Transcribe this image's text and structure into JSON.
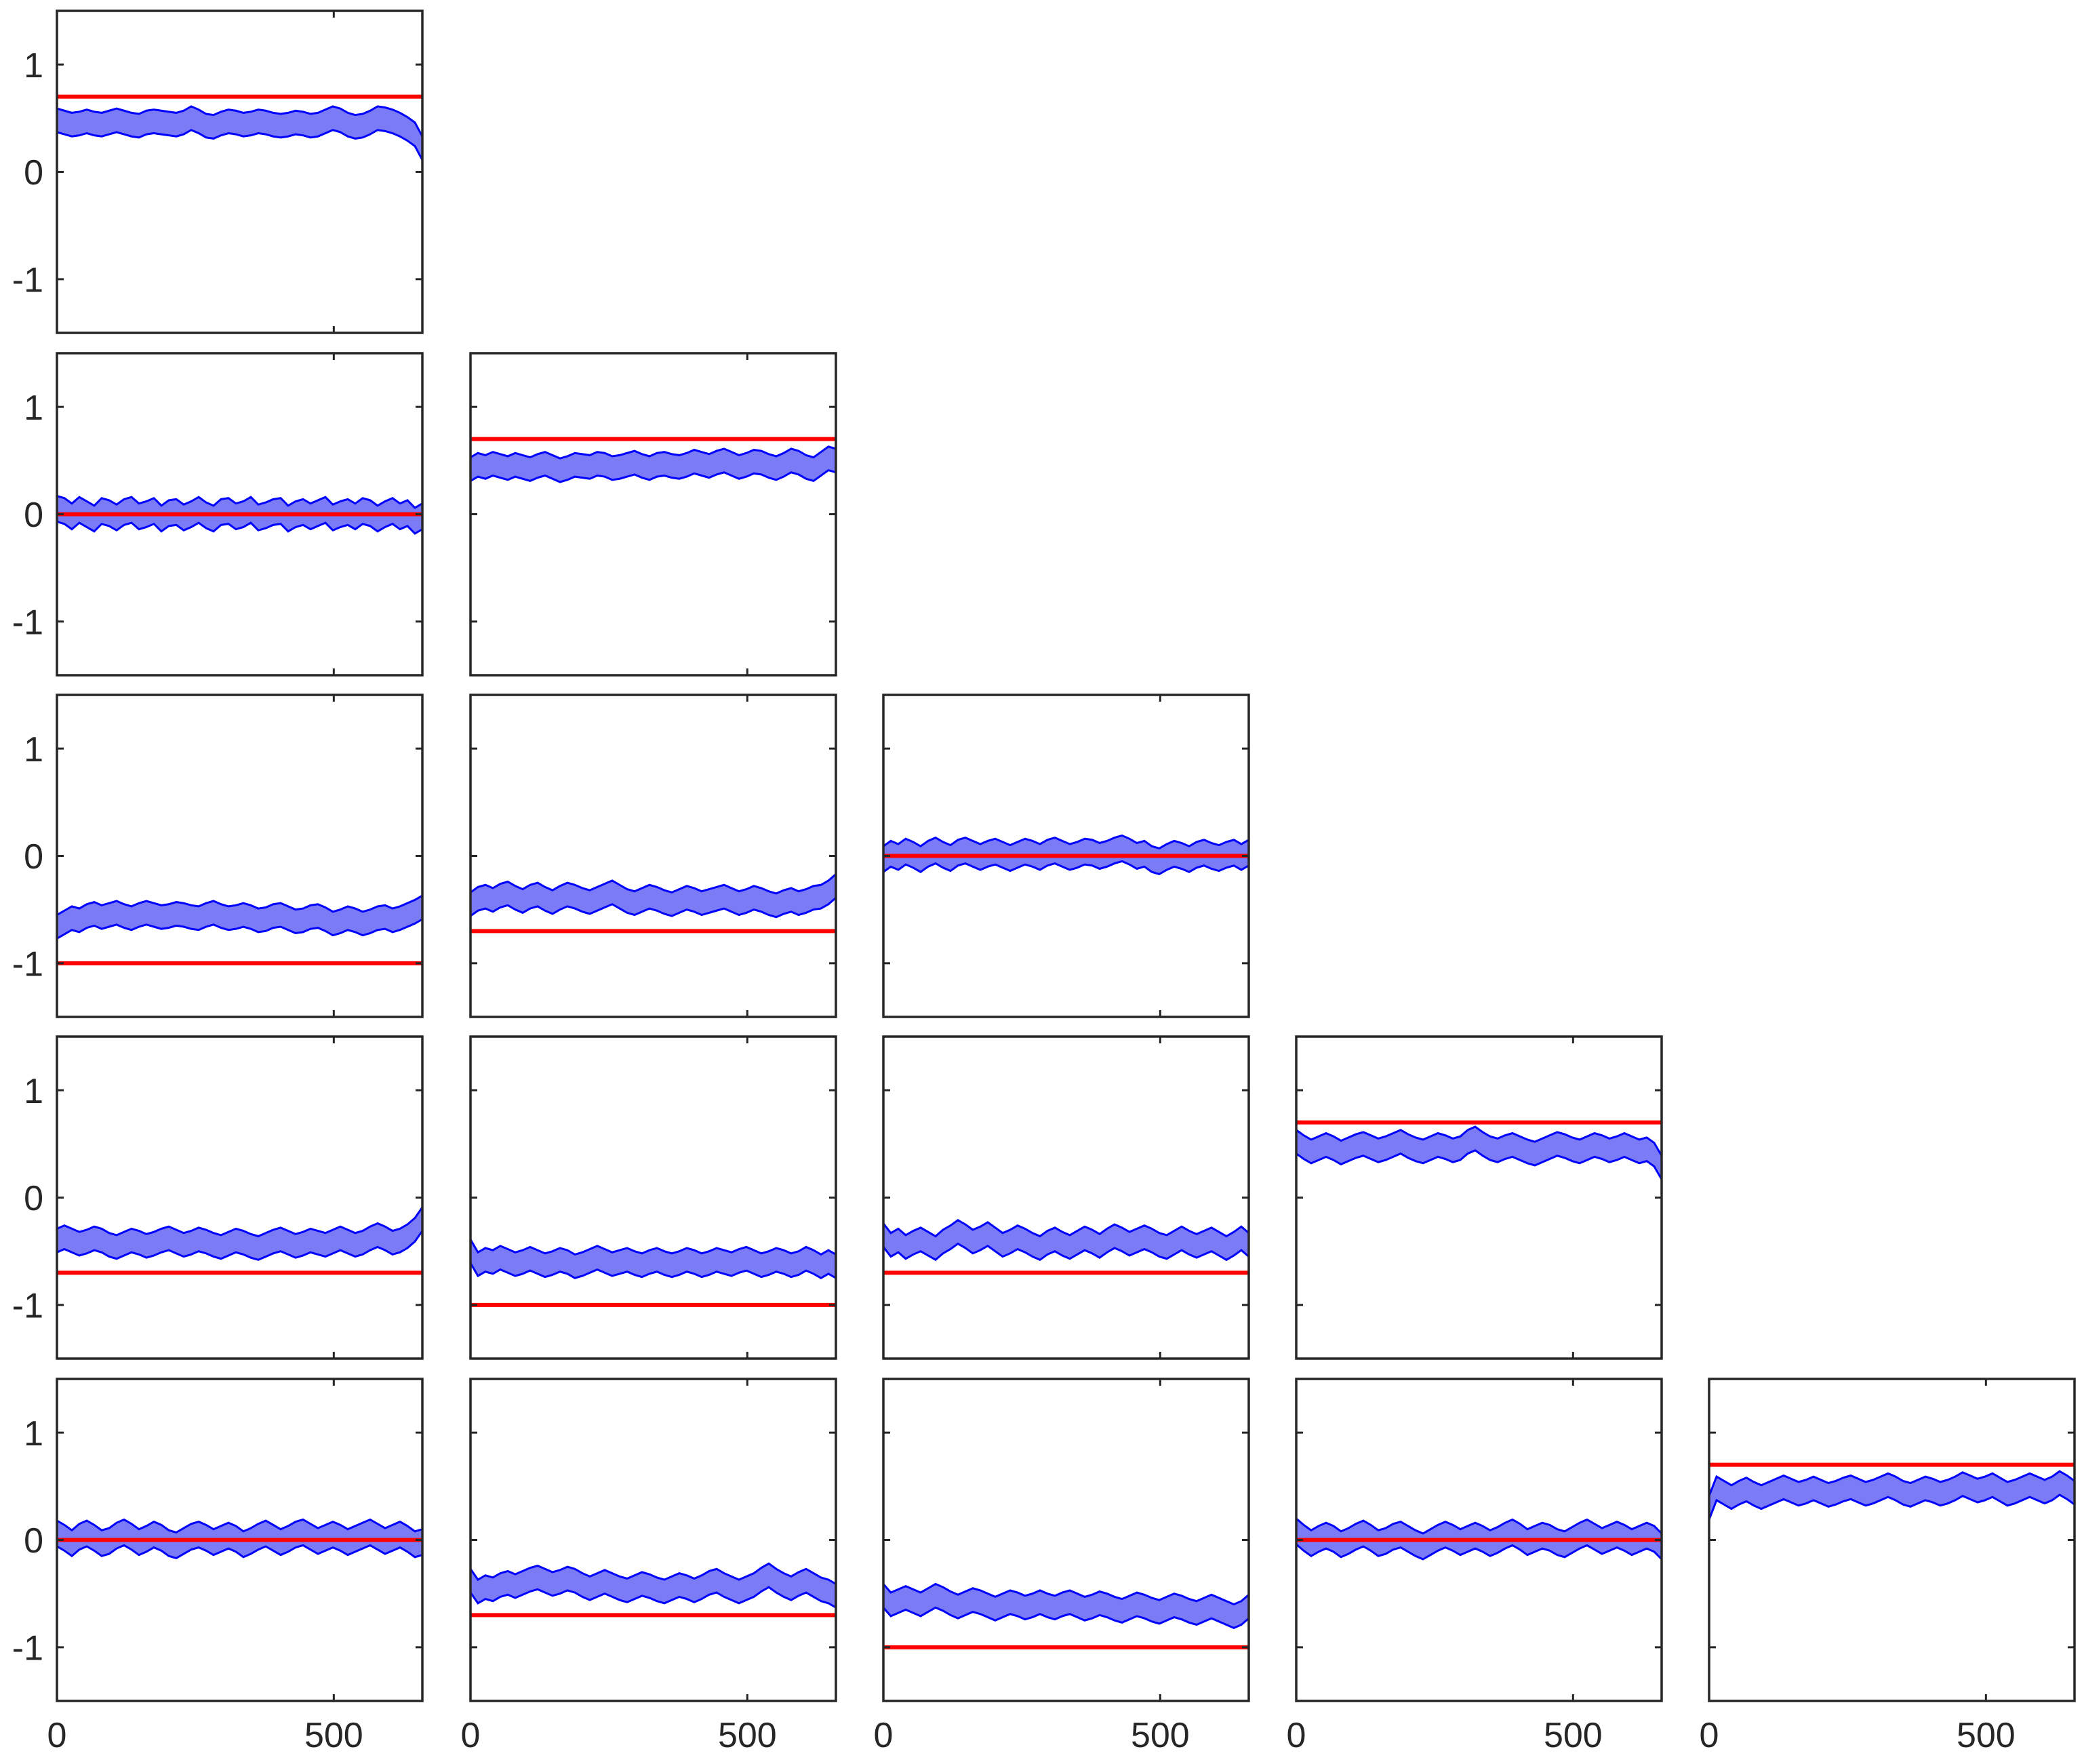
{
  "figure": {
    "grid_rows": 5,
    "grid_cols": 5,
    "layout": "lower-triangular",
    "colors": {
      "reference_line": "#ff0000",
      "band_fill": "#7b7bf5",
      "band_edge": "#0000ff",
      "axes": "#262626"
    }
  },
  "chart_data": [
    {
      "type": "line",
      "panel": "1-1",
      "row": 1,
      "col": 1,
      "reference": 0.7,
      "band_center": [
        0.48,
        0.46,
        0.44,
        0.45,
        0.47,
        0.45,
        0.44,
        0.46,
        0.48,
        0.46,
        0.44,
        0.43,
        0.46,
        0.47,
        0.46,
        0.45,
        0.44,
        0.46,
        0.5,
        0.47,
        0.43,
        0.42,
        0.45,
        0.47,
        0.46,
        0.44,
        0.45,
        0.47,
        0.46,
        0.44,
        0.43,
        0.44,
        0.46,
        0.45,
        0.43,
        0.44,
        0.47,
        0.5,
        0.48,
        0.44,
        0.42,
        0.43,
        0.46,
        0.5,
        0.49,
        0.47,
        0.44,
        0.4,
        0.35,
        0.22
      ],
      "band_halfwidth": 0.11,
      "xlim": [
        0,
        660
      ],
      "ylim": [
        -1.5,
        1.5
      ],
      "xticks": [
        0,
        500
      ],
      "yticks": [
        -1,
        0,
        1
      ],
      "show_xticklabels": false,
      "show_yticklabels": true
    },
    {
      "type": "line",
      "panel": "2-1",
      "row": 2,
      "col": 1,
      "reference": 0.0,
      "band_center": [
        0.05,
        0.03,
        -0.02,
        0.04,
        0.0,
        -0.04,
        0.03,
        0.01,
        -0.03,
        0.02,
        0.04,
        -0.02,
        0.0,
        0.03,
        -0.04,
        0.01,
        0.02,
        -0.03,
        0.0,
        0.04,
        -0.01,
        -0.04,
        0.02,
        0.03,
        -0.02,
        0.0,
        0.04,
        -0.03,
        -0.01,
        0.02,
        0.03,
        -0.04,
        0.0,
        0.02,
        -0.02,
        0.01,
        0.04,
        -0.03,
        0.0,
        0.02,
        -0.02,
        0.03,
        0.01,
        -0.04,
        0.0,
        0.03,
        -0.02,
        0.01,
        -0.06,
        -0.02
      ],
      "band_halfwidth": 0.12,
      "xlim": [
        0,
        660
      ],
      "ylim": [
        -1.5,
        1.5
      ],
      "xticks": [
        0,
        500
      ],
      "yticks": [
        -1,
        0,
        1
      ],
      "show_xticklabels": false,
      "show_yticklabels": true
    },
    {
      "type": "line",
      "panel": "2-2",
      "row": 2,
      "col": 2,
      "reference": 0.7,
      "band_center": [
        0.42,
        0.46,
        0.44,
        0.47,
        0.45,
        0.43,
        0.46,
        0.44,
        0.42,
        0.45,
        0.47,
        0.44,
        0.41,
        0.43,
        0.46,
        0.45,
        0.44,
        0.47,
        0.46,
        0.43,
        0.44,
        0.46,
        0.48,
        0.45,
        0.43,
        0.46,
        0.47,
        0.45,
        0.44,
        0.46,
        0.49,
        0.47,
        0.45,
        0.48,
        0.5,
        0.47,
        0.44,
        0.46,
        0.49,
        0.48,
        0.45,
        0.43,
        0.46,
        0.5,
        0.48,
        0.44,
        0.42,
        0.47,
        0.52,
        0.5
      ],
      "band_halfwidth": 0.11,
      "xlim": [
        0,
        660
      ],
      "ylim": [
        -1.5,
        1.5
      ],
      "xticks": [
        0,
        500
      ],
      "yticks": [
        -1,
        0,
        1
      ],
      "show_xticklabels": false,
      "show_yticklabels": false
    },
    {
      "type": "line",
      "panel": "3-1",
      "row": 3,
      "col": 1,
      "reference": -1.0,
      "band_center": [
        -0.66,
        -0.62,
        -0.58,
        -0.6,
        -0.56,
        -0.54,
        -0.57,
        -0.55,
        -0.53,
        -0.56,
        -0.58,
        -0.55,
        -0.53,
        -0.55,
        -0.57,
        -0.56,
        -0.54,
        -0.55,
        -0.57,
        -0.58,
        -0.55,
        -0.53,
        -0.56,
        -0.58,
        -0.57,
        -0.55,
        -0.57,
        -0.6,
        -0.59,
        -0.56,
        -0.55,
        -0.58,
        -0.61,
        -0.6,
        -0.57,
        -0.56,
        -0.59,
        -0.63,
        -0.61,
        -0.58,
        -0.6,
        -0.63,
        -0.61,
        -0.58,
        -0.57,
        -0.6,
        -0.58,
        -0.55,
        -0.52,
        -0.48
      ],
      "band_halfwidth": 0.11,
      "xlim": [
        0,
        660
      ],
      "ylim": [
        -1.5,
        1.5
      ],
      "xticks": [
        0,
        500
      ],
      "yticks": [
        -1,
        0,
        1
      ],
      "show_xticklabels": false,
      "show_yticklabels": true
    },
    {
      "type": "line",
      "panel": "3-2",
      "row": 3,
      "col": 2,
      "reference": -0.7,
      "band_center": [
        -0.45,
        -0.4,
        -0.38,
        -0.41,
        -0.37,
        -0.35,
        -0.39,
        -0.42,
        -0.38,
        -0.36,
        -0.4,
        -0.43,
        -0.39,
        -0.36,
        -0.38,
        -0.41,
        -0.43,
        -0.4,
        -0.37,
        -0.34,
        -0.38,
        -0.42,
        -0.44,
        -0.41,
        -0.38,
        -0.4,
        -0.43,
        -0.45,
        -0.42,
        -0.39,
        -0.41,
        -0.44,
        -0.42,
        -0.4,
        -0.38,
        -0.41,
        -0.44,
        -0.42,
        -0.39,
        -0.41,
        -0.44,
        -0.46,
        -0.43,
        -0.41,
        -0.44,
        -0.42,
        -0.39,
        -0.38,
        -0.34,
        -0.28
      ],
      "band_halfwidth": 0.11,
      "xlim": [
        0,
        660
      ],
      "ylim": [
        -1.5,
        1.5
      ],
      "xticks": [
        0,
        500
      ],
      "yticks": [
        -1,
        0,
        1
      ],
      "show_xticklabels": false,
      "show_yticklabels": false
    },
    {
      "type": "line",
      "panel": "3-3",
      "row": 3,
      "col": 3,
      "reference": 0.0,
      "band_center": [
        -0.03,
        0.02,
        -0.01,
        0.04,
        0.01,
        -0.03,
        0.02,
        0.05,
        0.01,
        -0.02,
        0.03,
        0.05,
        0.02,
        -0.01,
        0.02,
        0.04,
        0.01,
        -0.02,
        0.01,
        0.04,
        0.02,
        -0.01,
        0.03,
        0.05,
        0.02,
        -0.01,
        0.01,
        0.04,
        0.03,
        0.0,
        0.02,
        0.05,
        0.07,
        0.04,
        0.0,
        0.02,
        -0.03,
        -0.05,
        -0.01,
        0.02,
        0.0,
        -0.03,
        0.01,
        0.03,
        0.0,
        -0.02,
        0.01,
        0.03,
        -0.01,
        0.03
      ],
      "band_halfwidth": 0.12,
      "xlim": [
        0,
        660
      ],
      "ylim": [
        -1.5,
        1.5
      ],
      "xticks": [
        0,
        500
      ],
      "yticks": [
        -1,
        0,
        1
      ],
      "show_xticklabels": false,
      "show_yticklabels": false
    },
    {
      "type": "line",
      "panel": "4-1",
      "row": 4,
      "col": 1,
      "reference": -0.7,
      "band_center": [
        -0.4,
        -0.37,
        -0.4,
        -0.43,
        -0.41,
        -0.38,
        -0.4,
        -0.44,
        -0.46,
        -0.43,
        -0.4,
        -0.42,
        -0.45,
        -0.43,
        -0.4,
        -0.38,
        -0.41,
        -0.44,
        -0.42,
        -0.39,
        -0.41,
        -0.44,
        -0.46,
        -0.43,
        -0.4,
        -0.42,
        -0.45,
        -0.47,
        -0.44,
        -0.41,
        -0.39,
        -0.42,
        -0.45,
        -0.43,
        -0.4,
        -0.42,
        -0.44,
        -0.41,
        -0.38,
        -0.41,
        -0.44,
        -0.42,
        -0.38,
        -0.35,
        -0.38,
        -0.42,
        -0.4,
        -0.36,
        -0.3,
        -0.2
      ],
      "band_halfwidth": 0.11,
      "xlim": [
        0,
        660
      ],
      "ylim": [
        -1.5,
        1.5
      ],
      "xticks": [
        0,
        500
      ],
      "yticks": [
        -1,
        0,
        1
      ],
      "show_xticklabels": false,
      "show_yticklabels": true
    },
    {
      "type": "line",
      "panel": "4-2",
      "row": 4,
      "col": 2,
      "reference": -1.0,
      "band_center": [
        -0.5,
        -0.62,
        -0.58,
        -0.6,
        -0.56,
        -0.59,
        -0.62,
        -0.6,
        -0.57,
        -0.6,
        -0.63,
        -0.61,
        -0.58,
        -0.6,
        -0.64,
        -0.62,
        -0.59,
        -0.56,
        -0.59,
        -0.62,
        -0.6,
        -0.58,
        -0.61,
        -0.63,
        -0.6,
        -0.58,
        -0.61,
        -0.63,
        -0.61,
        -0.58,
        -0.6,
        -0.63,
        -0.61,
        -0.58,
        -0.6,
        -0.62,
        -0.59,
        -0.57,
        -0.6,
        -0.63,
        -0.61,
        -0.58,
        -0.6,
        -0.63,
        -0.61,
        -0.57,
        -0.6,
        -0.64,
        -0.6,
        -0.64
      ],
      "band_halfwidth": 0.11,
      "xlim": [
        0,
        660
      ],
      "ylim": [
        -1.5,
        1.5
      ],
      "xticks": [
        0,
        500
      ],
      "yticks": [
        -1,
        0,
        1
      ],
      "show_xticklabels": false,
      "show_yticklabels": false
    },
    {
      "type": "line",
      "panel": "4-3",
      "row": 4,
      "col": 3,
      "reference": -0.7,
      "band_center": [
        -0.35,
        -0.44,
        -0.4,
        -0.46,
        -0.42,
        -0.39,
        -0.43,
        -0.47,
        -0.41,
        -0.37,
        -0.32,
        -0.36,
        -0.41,
        -0.38,
        -0.34,
        -0.39,
        -0.44,
        -0.41,
        -0.37,
        -0.4,
        -0.44,
        -0.47,
        -0.42,
        -0.39,
        -0.43,
        -0.46,
        -0.42,
        -0.38,
        -0.41,
        -0.45,
        -0.4,
        -0.36,
        -0.39,
        -0.43,
        -0.4,
        -0.37,
        -0.4,
        -0.44,
        -0.46,
        -0.42,
        -0.38,
        -0.42,
        -0.45,
        -0.42,
        -0.39,
        -0.43,
        -0.47,
        -0.43,
        -0.38,
        -0.44
      ],
      "band_halfwidth": 0.11,
      "xlim": [
        0,
        660
      ],
      "ylim": [
        -1.5,
        1.5
      ],
      "xticks": [
        0,
        500
      ],
      "yticks": [
        -1,
        0,
        1
      ],
      "show_xticklabels": false,
      "show_yticklabels": false
    },
    {
      "type": "line",
      "panel": "4-4",
      "row": 4,
      "col": 4,
      "reference": 0.7,
      "band_center": [
        0.52,
        0.47,
        0.43,
        0.46,
        0.49,
        0.46,
        0.42,
        0.45,
        0.48,
        0.5,
        0.47,
        0.44,
        0.46,
        0.49,
        0.52,
        0.48,
        0.45,
        0.43,
        0.46,
        0.49,
        0.47,
        0.44,
        0.46,
        0.52,
        0.55,
        0.5,
        0.46,
        0.44,
        0.47,
        0.49,
        0.46,
        0.43,
        0.41,
        0.44,
        0.47,
        0.5,
        0.48,
        0.45,
        0.43,
        0.46,
        0.49,
        0.47,
        0.44,
        0.46,
        0.49,
        0.46,
        0.43,
        0.45,
        0.4,
        0.28
      ],
      "band_halfwidth": 0.11,
      "xlim": [
        0,
        660
      ],
      "ylim": [
        -1.5,
        1.5
      ],
      "xticks": [
        0,
        500
      ],
      "yticks": [
        -1,
        0,
        1
      ],
      "show_xticklabels": false,
      "show_yticklabels": false
    },
    {
      "type": "line",
      "panel": "5-1",
      "row": 5,
      "col": 1,
      "reference": 0.0,
      "band_center": [
        0.06,
        0.02,
        -0.03,
        0.03,
        0.06,
        0.02,
        -0.03,
        -0.01,
        0.04,
        0.07,
        0.03,
        -0.02,
        0.01,
        0.05,
        0.02,
        -0.03,
        -0.05,
        -0.01,
        0.03,
        0.05,
        0.02,
        -0.02,
        0.01,
        0.04,
        0.01,
        -0.04,
        -0.01,
        0.03,
        0.06,
        0.02,
        -0.02,
        0.01,
        0.05,
        0.07,
        0.03,
        -0.01,
        0.02,
        0.05,
        0.02,
        -0.02,
        0.01,
        0.04,
        0.07,
        0.03,
        -0.01,
        0.02,
        0.05,
        0.01,
        -0.04,
        -0.02
      ],
      "band_halfwidth": 0.12,
      "xlim": [
        0,
        660
      ],
      "ylim": [
        -1.5,
        1.5
      ],
      "xticks": [
        0,
        500
      ],
      "yticks": [
        -1,
        0,
        1
      ],
      "show_xticklabels": true,
      "show_yticklabels": true
    },
    {
      "type": "line",
      "panel": "5-2",
      "row": 5,
      "col": 2,
      "reference": -0.7,
      "band_center": [
        -0.38,
        -0.48,
        -0.44,
        -0.46,
        -0.42,
        -0.4,
        -0.43,
        -0.4,
        -0.37,
        -0.35,
        -0.38,
        -0.41,
        -0.39,
        -0.36,
        -0.38,
        -0.42,
        -0.45,
        -0.42,
        -0.39,
        -0.42,
        -0.45,
        -0.47,
        -0.44,
        -0.41,
        -0.43,
        -0.46,
        -0.48,
        -0.45,
        -0.42,
        -0.44,
        -0.47,
        -0.44,
        -0.4,
        -0.38,
        -0.42,
        -0.45,
        -0.48,
        -0.45,
        -0.42,
        -0.37,
        -0.33,
        -0.38,
        -0.42,
        -0.45,
        -0.41,
        -0.38,
        -0.42,
        -0.46,
        -0.48,
        -0.52
      ],
      "band_halfwidth": 0.11,
      "xlim": [
        0,
        660
      ],
      "ylim": [
        -1.5,
        1.5
      ],
      "xticks": [
        0,
        500
      ],
      "yticks": [
        -1,
        0,
        1
      ],
      "show_xticklabels": true,
      "show_yticklabels": false
    },
    {
      "type": "line",
      "panel": "5-3",
      "row": 5,
      "col": 3,
      "reference": -1.0,
      "band_center": [
        -0.52,
        -0.6,
        -0.57,
        -0.54,
        -0.57,
        -0.6,
        -0.56,
        -0.52,
        -0.55,
        -0.59,
        -0.62,
        -0.59,
        -0.56,
        -0.58,
        -0.61,
        -0.64,
        -0.61,
        -0.58,
        -0.6,
        -0.63,
        -0.61,
        -0.58,
        -0.61,
        -0.63,
        -0.6,
        -0.58,
        -0.61,
        -0.64,
        -0.62,
        -0.59,
        -0.61,
        -0.64,
        -0.66,
        -0.63,
        -0.6,
        -0.62,
        -0.65,
        -0.67,
        -0.64,
        -0.61,
        -0.63,
        -0.66,
        -0.68,
        -0.65,
        -0.62,
        -0.65,
        -0.68,
        -0.71,
        -0.68,
        -0.62
      ],
      "band_halfwidth": 0.11,
      "xlim": [
        0,
        660
      ],
      "ylim": [
        -1.5,
        1.5
      ],
      "xticks": [
        0,
        500
      ],
      "yticks": [
        -1,
        0,
        1
      ],
      "show_xticklabels": true,
      "show_yticklabels": false
    },
    {
      "type": "line",
      "panel": "5-4",
      "row": 5,
      "col": 4,
      "reference": 0.0,
      "band_center": [
        0.08,
        0.02,
        -0.03,
        0.01,
        0.04,
        0.01,
        -0.04,
        -0.01,
        0.03,
        0.06,
        0.02,
        -0.03,
        -0.01,
        0.03,
        0.05,
        0.01,
        -0.03,
        -0.06,
        -0.02,
        0.02,
        0.05,
        0.02,
        -0.02,
        0.01,
        0.04,
        0.01,
        -0.03,
        0.0,
        0.04,
        0.07,
        0.03,
        -0.02,
        0.01,
        0.04,
        0.02,
        -0.02,
        -0.04,
        0.0,
        0.04,
        0.07,
        0.03,
        -0.01,
        0.02,
        0.05,
        0.02,
        -0.02,
        0.01,
        0.04,
        0.01,
        -0.06
      ],
      "band_halfwidth": 0.12,
      "xlim": [
        0,
        660
      ],
      "ylim": [
        -1.5,
        1.5
      ],
      "xticks": [
        0,
        500
      ],
      "yticks": [
        -1,
        0,
        1
      ],
      "show_xticklabels": true,
      "show_yticklabels": false
    },
    {
      "type": "line",
      "panel": "5-5",
      "row": 5,
      "col": 5,
      "reference": 0.7,
      "band_center": [
        0.3,
        0.48,
        0.44,
        0.4,
        0.44,
        0.47,
        0.43,
        0.4,
        0.43,
        0.46,
        0.49,
        0.46,
        0.43,
        0.45,
        0.48,
        0.45,
        0.42,
        0.44,
        0.47,
        0.49,
        0.46,
        0.43,
        0.45,
        0.48,
        0.51,
        0.48,
        0.44,
        0.42,
        0.45,
        0.48,
        0.46,
        0.43,
        0.45,
        0.48,
        0.52,
        0.49,
        0.46,
        0.48,
        0.51,
        0.47,
        0.43,
        0.45,
        0.48,
        0.51,
        0.48,
        0.45,
        0.48,
        0.53,
        0.49,
        0.44
      ],
      "band_halfwidth": 0.11,
      "xlim": [
        0,
        660
      ],
      "ylim": [
        -1.5,
        1.5
      ],
      "xticks": [
        0,
        500
      ],
      "yticks": [
        -1,
        0,
        1
      ],
      "show_xticklabels": true,
      "show_yticklabels": false
    }
  ]
}
